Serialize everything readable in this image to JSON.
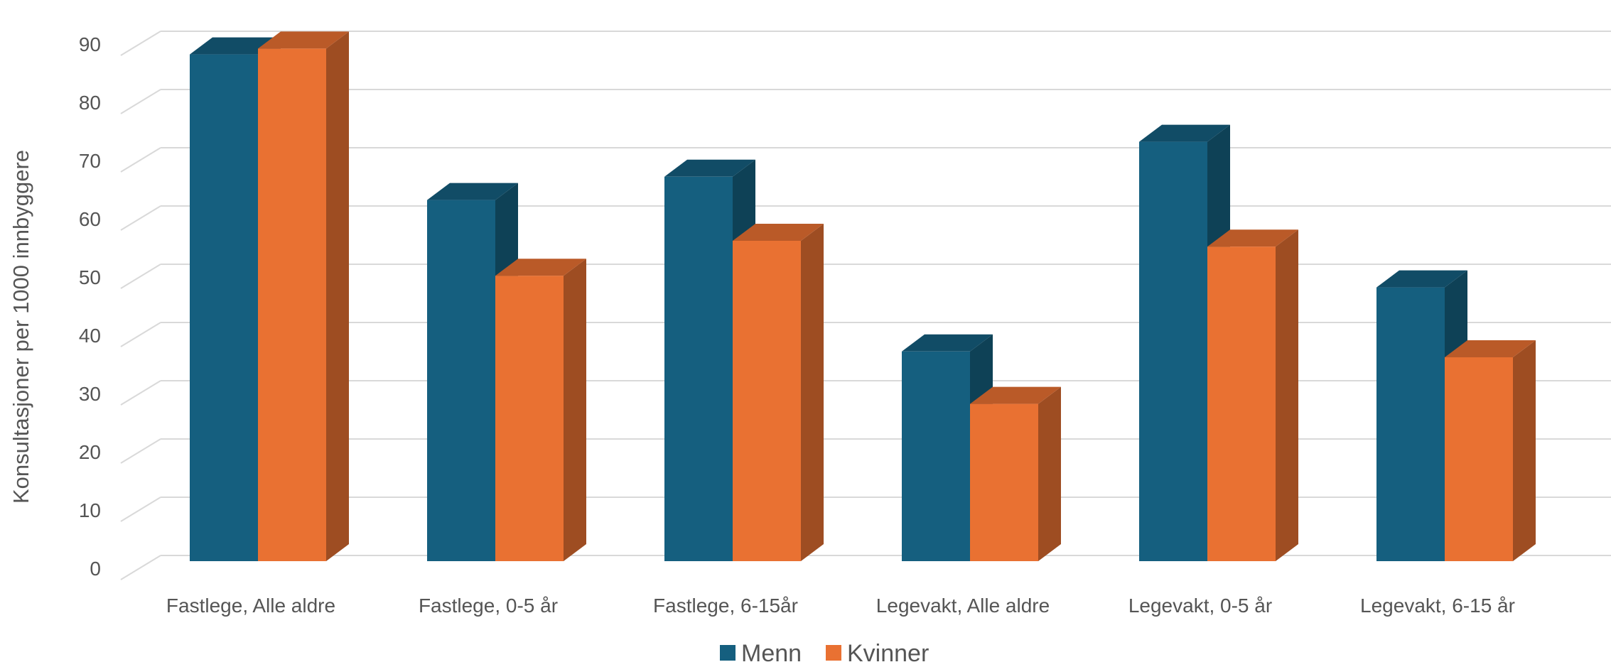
{
  "chart_data": {
    "type": "bar",
    "style": "3d-clustered-column",
    "title": "",
    "xlabel": "",
    "ylabel": "Konsultasjoner per 1000 innbyggere",
    "ylim": [
      0,
      95
    ],
    "yticks": [
      0,
      10,
      20,
      30,
      40,
      50,
      60,
      70,
      80,
      90
    ],
    "grid": true,
    "legend": "bottom-center",
    "categories": [
      "Fastlege, Alle aldre",
      "Fastlege, 0-5 år",
      "Fastlege, 6-15år",
      "Legevakt, Alle aldre",
      "Legevakt, 0-5 år",
      "Legevakt, 6-15 år"
    ],
    "series": [
      {
        "name": "Menn",
        "color": "#155F7F",
        "values": [
          87,
          62,
          66,
          36,
          72,
          47
        ]
      },
      {
        "name": "Kvinner",
        "color": "#E97132",
        "values": [
          88,
          49,
          55,
          27,
          54,
          35
        ]
      }
    ]
  }
}
